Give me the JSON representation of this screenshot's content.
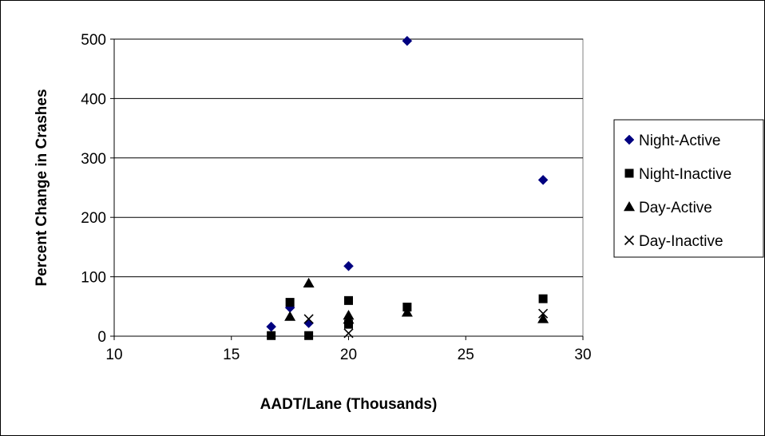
{
  "chart_data": {
    "type": "scatter",
    "title": "",
    "xlabel": "AADT/Lane (Thousands)",
    "ylabel": "Percent Change in Crashes",
    "xlim": [
      10,
      30
    ],
    "ylim": [
      0,
      500
    ],
    "xticks": [
      10,
      15,
      20,
      25,
      30
    ],
    "yticks": [
      0,
      100,
      200,
      300,
      400,
      500
    ],
    "grid": "horizontal",
    "legend_position": "right",
    "series": [
      {
        "name": "Night-Active",
        "marker": "diamond",
        "color": "#000080",
        "points": [
          [
            16.7,
            16
          ],
          [
            17.5,
            48
          ],
          [
            18.3,
            22
          ],
          [
            20.0,
            118
          ],
          [
            22.5,
            497
          ],
          [
            28.3,
            263
          ]
        ]
      },
      {
        "name": "Night-Inactive",
        "marker": "square",
        "color": "#000000",
        "points": [
          [
            16.7,
            1
          ],
          [
            17.5,
            57
          ],
          [
            18.3,
            1
          ],
          [
            20.0,
            60
          ],
          [
            20.0,
            20
          ],
          [
            22.5,
            49
          ],
          [
            28.3,
            63
          ]
        ]
      },
      {
        "name": "Day-Active",
        "marker": "triangle",
        "color": "#000000",
        "points": [
          [
            17.5,
            33
          ],
          [
            18.3,
            89
          ],
          [
            20.0,
            35
          ],
          [
            20.0,
            28
          ],
          [
            22.5,
            40
          ],
          [
            28.3,
            29
          ]
        ]
      },
      {
        "name": "Day-Inactive",
        "marker": "x",
        "color": "#000000",
        "points": [
          [
            18.3,
            29
          ],
          [
            20.0,
            5
          ],
          [
            28.3,
            38
          ]
        ]
      }
    ]
  }
}
